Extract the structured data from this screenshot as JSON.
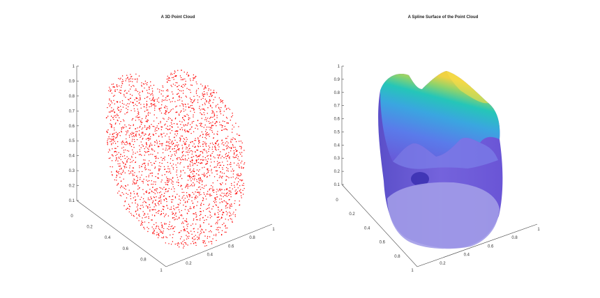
{
  "chart_data": [
    {
      "type": "scatter",
      "title": "A 3D Point Cloud",
      "xlabel": "",
      "ylabel": "",
      "zlabel": "",
      "marker_color": "#ff0000",
      "x_ticks": [
        "0.2",
        "0.4",
        "0.6",
        "0.8",
        "1"
      ],
      "y_ticks": [
        "0",
        "0.2",
        "0.4",
        "0.6",
        "0.8",
        "1"
      ],
      "z_ticks": [
        "0.1",
        "0.2",
        "0.3",
        "0.4",
        "0.5",
        "0.6",
        "0.7",
        "0.8",
        "0.9",
        "1"
      ],
      "xlim": [
        0.1,
        1
      ],
      "ylim": [
        0,
        1
      ],
      "zlim": [
        0.1,
        1
      ],
      "grid": false
    },
    {
      "type": "surface",
      "title": "A Spline Surface of the Point Cloud",
      "xlabel": "",
      "ylabel": "",
      "zlabel": "",
      "colormap": [
        "#6a55d6",
        "#5a7bea",
        "#3aa6e0",
        "#25c6b8",
        "#8fd36b",
        "#f0d243"
      ],
      "x_ticks": [
        "0.2",
        "0.4",
        "0.6",
        "0.8",
        "1"
      ],
      "y_ticks": [
        "0",
        "0.2",
        "0.4",
        "0.6",
        "0.8",
        "1"
      ],
      "z_ticks": [
        "0.1",
        "0.2",
        "0.3",
        "0.4",
        "0.5",
        "0.6",
        "0.7",
        "0.8",
        "0.9",
        "1"
      ],
      "xlim": [
        0.1,
        1
      ],
      "ylim": [
        0,
        1
      ],
      "zlim": [
        0.1,
        1
      ],
      "grid": false
    }
  ]
}
